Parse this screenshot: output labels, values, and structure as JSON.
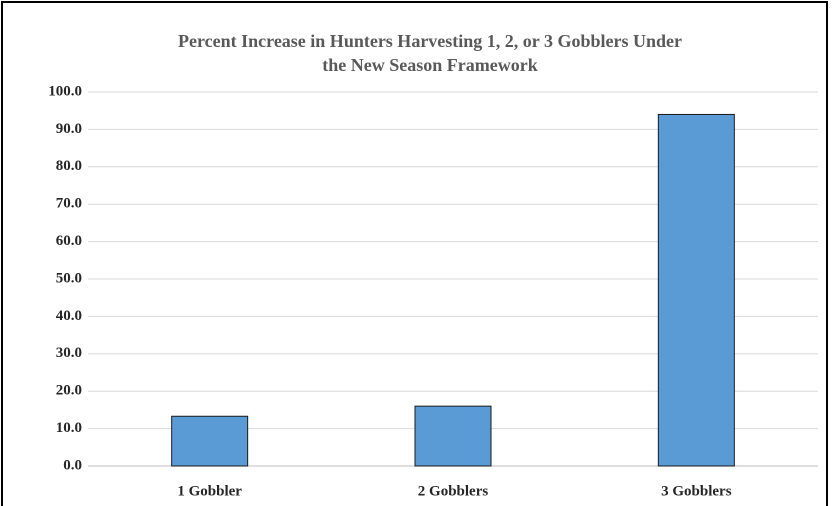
{
  "chart_data": {
    "type": "bar",
    "title": [
      "Percent Increase in Hunters Harvesting 1, 2, or 3 Gobblers Under",
      "the New Season Framework"
    ],
    "categories": [
      "1 Gobbler",
      "2 Gobblers",
      "3 Gobblers"
    ],
    "values": [
      13.3,
      16.0,
      94.0
    ],
    "color": "#5b9bd5",
    "ylim": [
      0,
      100
    ],
    "yticks": [
      {
        "value": 0,
        "label": "0.0"
      },
      {
        "value": 10,
        "label": "10.0"
      },
      {
        "value": 20,
        "label": "20.0"
      },
      {
        "value": 30,
        "label": "30.0"
      },
      {
        "value": 40,
        "label": "40.0"
      },
      {
        "value": 50,
        "label": "50.0"
      },
      {
        "value": 60,
        "label": "60.0"
      },
      {
        "value": 70,
        "label": "70.0"
      },
      {
        "value": 80,
        "label": "80.0"
      },
      {
        "value": 90,
        "label": "90.0"
      },
      {
        "value": 100,
        "label": "100.0"
      }
    ],
    "grid": true
  }
}
